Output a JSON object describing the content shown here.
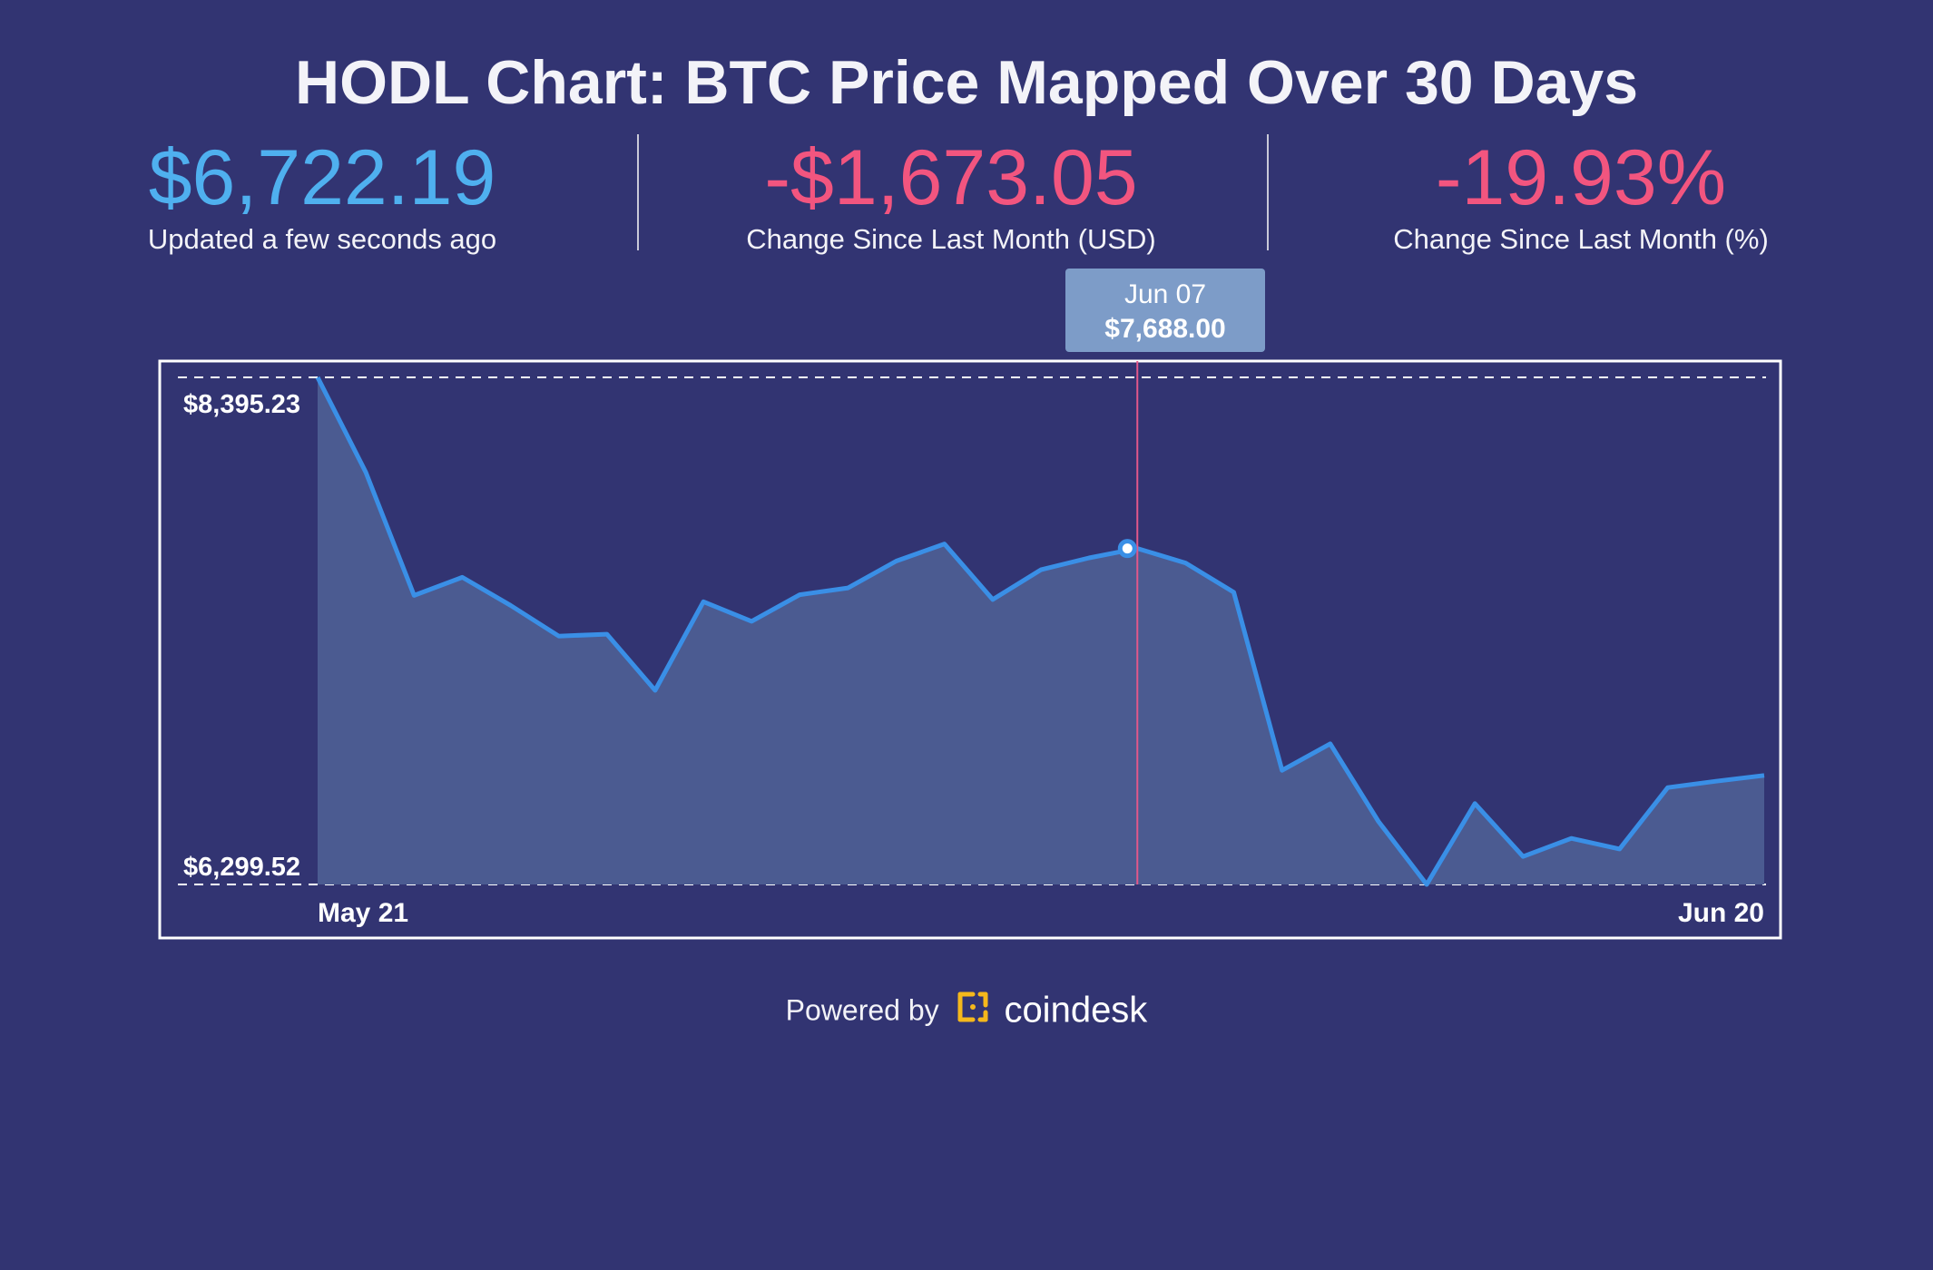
{
  "title": "HODL Chart: BTC Price Mapped Over 30 Days",
  "stats": [
    {
      "value": "$6,722.19",
      "label": "Updated a few seconds ago",
      "color": "#4fb0ef"
    },
    {
      "value": "-$1,673.05",
      "label": "Change Since Last Month (USD)",
      "color": "#f2557f"
    },
    {
      "value": "-19.93%",
      "label": "Change Since Last Month (%)",
      "color": "#f2557f"
    }
  ],
  "tooltip": {
    "date": "Jun 07",
    "price": "$7,688.00"
  },
  "footer": {
    "powered_by": "Powered by",
    "brand": "coindesk",
    "icon": "coindesk-logo-icon"
  },
  "colors": {
    "background": "#323472",
    "line": "#3a8fe6",
    "area": "#4b5b91",
    "marker": "#e3578a",
    "tooltip_bg": "#7d9cc8",
    "brand_icon": "#f5b81c"
  },
  "chart_data": {
    "type": "area",
    "title": "",
    "xlabel": "",
    "ylabel": "",
    "x_tick_labels": [
      "May 21",
      "Jun 20"
    ],
    "y_tick_labels": [
      "$8,395.23",
      "$6,299.52"
    ],
    "ylim": [
      6299.52,
      8395.23
    ],
    "grid": false,
    "highlight": {
      "x": "Jun 07",
      "y": 7688.0
    },
    "series": [
      {
        "x": [
          "May 21",
          "May 22",
          "May 23",
          "May 24",
          "May 25",
          "May 26",
          "May 27",
          "May 28",
          "May 29",
          "May 30",
          "May 31",
          "Jun 01",
          "Jun 02",
          "Jun 03",
          "Jun 04",
          "Jun 05",
          "Jun 06",
          "Jun 07",
          "Jun 08",
          "Jun 09",
          "Jun 10",
          "Jun 11",
          "Jun 12",
          "Jun 13",
          "Jun 14",
          "Jun 15",
          "Jun 16",
          "Jun 17",
          "Jun 18",
          "Jun 19",
          "Jun 20"
        ],
        "values": [
          8395.23,
          8003,
          7494,
          7569,
          7453,
          7326,
          7334,
          7102,
          7468,
          7387,
          7497,
          7525,
          7636,
          7707,
          7477,
          7600,
          7649,
          7688,
          7628,
          7507,
          6771,
          6881,
          6560,
          6299.52,
          6634,
          6415,
          6490,
          6446,
          6700,
          6726,
          6750
        ]
      }
    ]
  }
}
